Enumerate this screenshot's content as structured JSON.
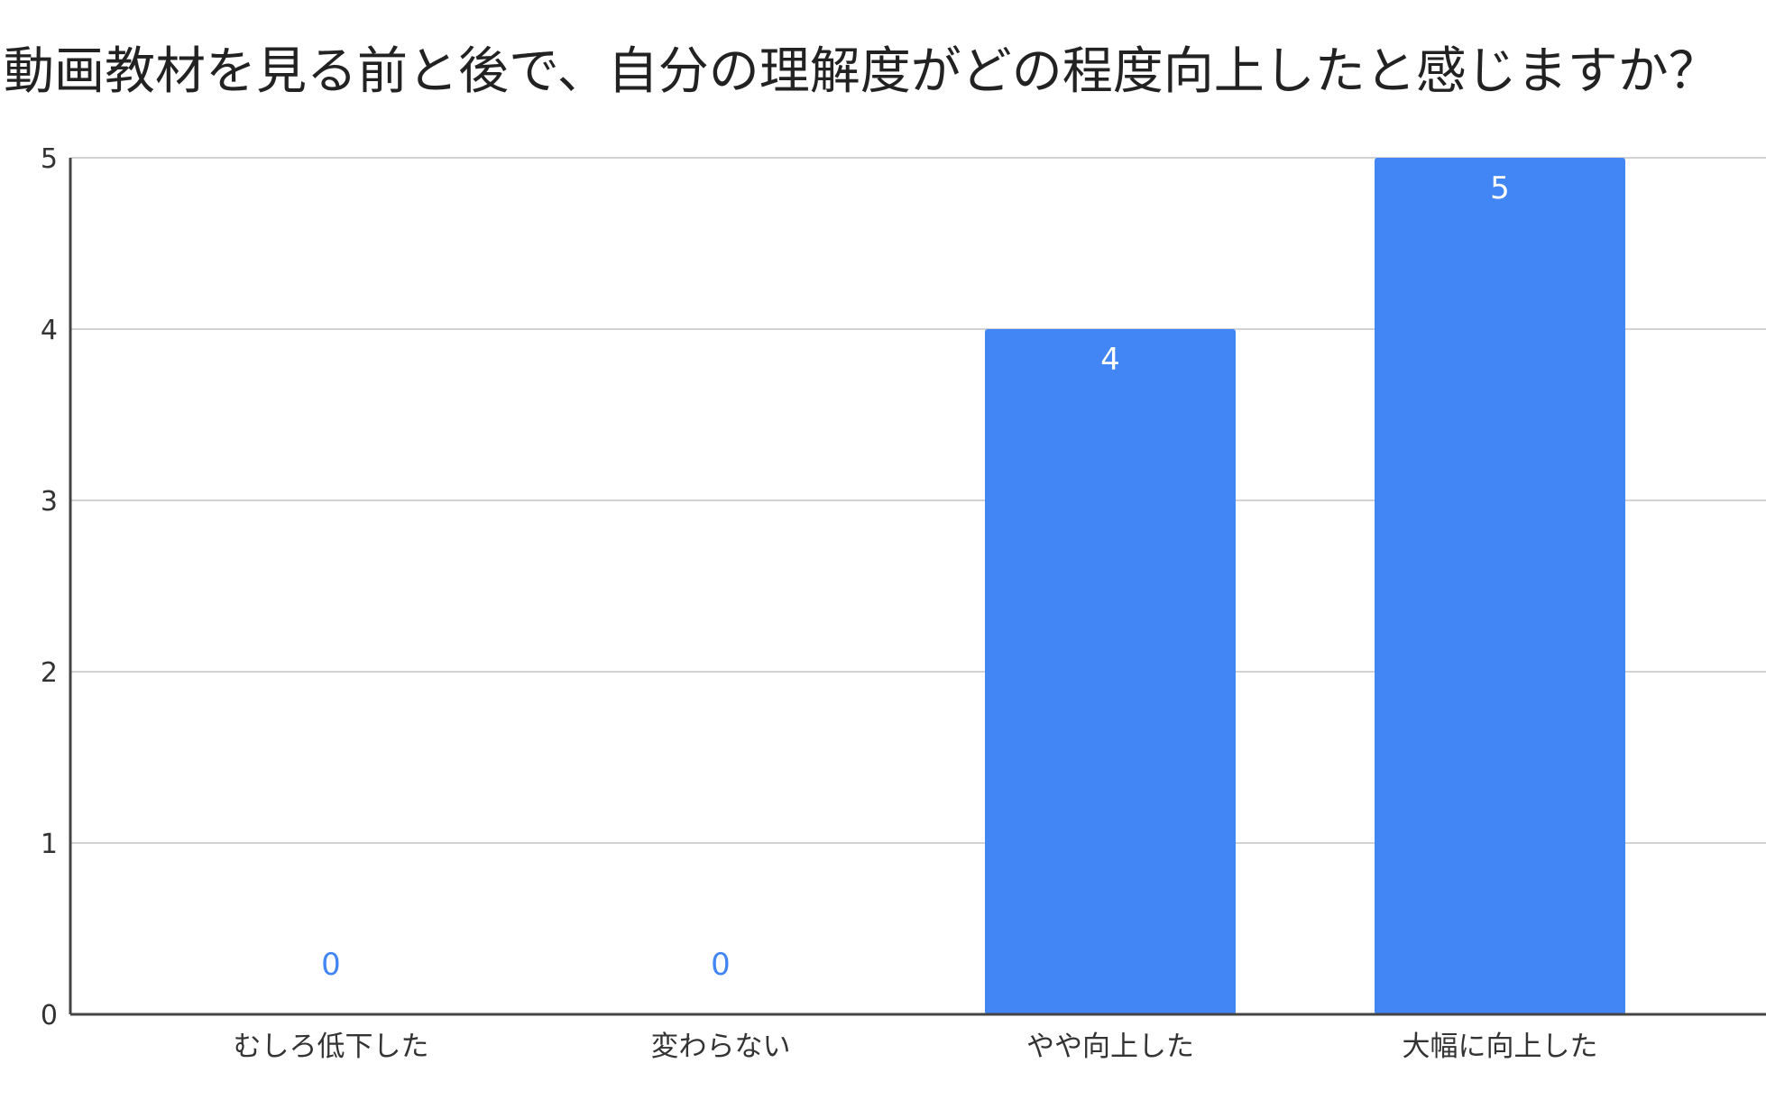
{
  "chart_data": {
    "type": "bar",
    "title": "動画教材を見る前と後で、自分の理解度がどの程度向上したと感じますか？",
    "categories": [
      "むしろ低下した",
      "変わらない",
      "やや向上した",
      "大幅に向上した"
    ],
    "values": [
      0,
      0,
      4,
      5
    ],
    "xlabel": "",
    "ylabel": "",
    "ylim": [
      0,
      5
    ],
    "yticks": [
      0,
      1,
      2,
      3,
      4,
      5
    ],
    "grid": true,
    "legend": "none",
    "data_labels": true
  },
  "colors": {
    "bar": "#4285f4",
    "label_inside": "#ffffff",
    "label_outside": "#4285f4",
    "grid": "#d3d3d3",
    "axis": "#444444"
  }
}
